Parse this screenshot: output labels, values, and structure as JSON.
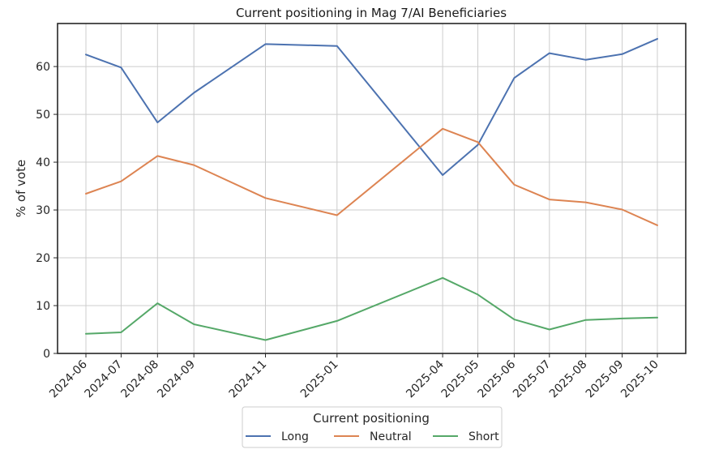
{
  "chart_data": {
    "type": "line",
    "title": "Current positioning in Mag 7/AI Beneficiaries",
    "xlabel": "",
    "ylabel": "% of vote",
    "ylim": [
      0,
      69
    ],
    "y_ticks": [
      0,
      10,
      20,
      30,
      40,
      50,
      60
    ],
    "x_ticks": [
      "2024-06",
      "2024-07",
      "2024-08",
      "2024-09",
      "2024-11",
      "2025-01",
      "2025-04",
      "2025-05",
      "2025-06",
      "2025-07",
      "2025-08",
      "2025-09",
      "2025-10"
    ],
    "x": [
      "2024-06-01",
      "2024-07-01",
      "2024-08-01",
      "2024-09-01",
      "2024-11-01",
      "2025-01-01",
      "2025-04-01",
      "2025-05-01",
      "2025-06-01",
      "2025-07-01",
      "2025-08-01",
      "2025-09-01",
      "2025-10-01"
    ],
    "grid": true,
    "legend_title": "Current positioning",
    "legend_position": "bottom-center",
    "series": [
      {
        "name": "Long",
        "color": "#4c72b0",
        "values": [
          62.5,
          59.8,
          48.3,
          54.5,
          64.7,
          64.3,
          37.3,
          43.6,
          57.6,
          62.8,
          61.4,
          62.6,
          65.8
        ]
      },
      {
        "name": "Neutral",
        "color": "#dd8452",
        "values": [
          33.4,
          36.0,
          41.3,
          39.4,
          32.5,
          28.9,
          47.0,
          44.2,
          35.3,
          32.2,
          31.6,
          30.1,
          26.8
        ]
      },
      {
        "name": "Short",
        "color": "#55a868",
        "values": [
          4.1,
          4.4,
          10.5,
          6.1,
          2.8,
          6.8,
          15.8,
          12.3,
          7.1,
          5.0,
          7.0,
          7.3,
          7.5
        ]
      }
    ]
  }
}
